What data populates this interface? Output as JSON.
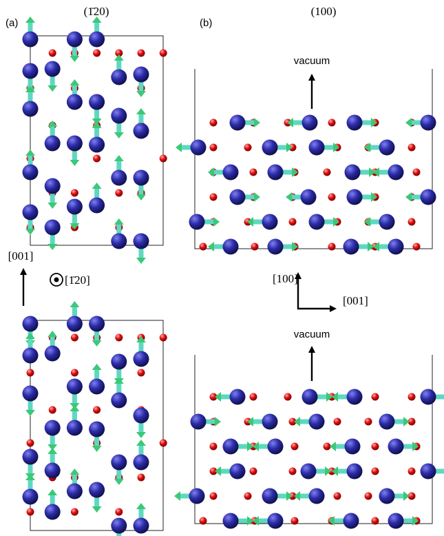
{
  "panel_a": {
    "label": "(a)",
    "title": "(1̄20)",
    "axis_label": "[001]",
    "view_label": "[1̄20]"
  },
  "panel_b": {
    "label": "(b)",
    "title": "(100)",
    "vacuum_top": "vacuum",
    "vacuum_bottom": "vacuum",
    "axis_vertical": "[100]",
    "axis_horizontal": "[001]"
  }
}
